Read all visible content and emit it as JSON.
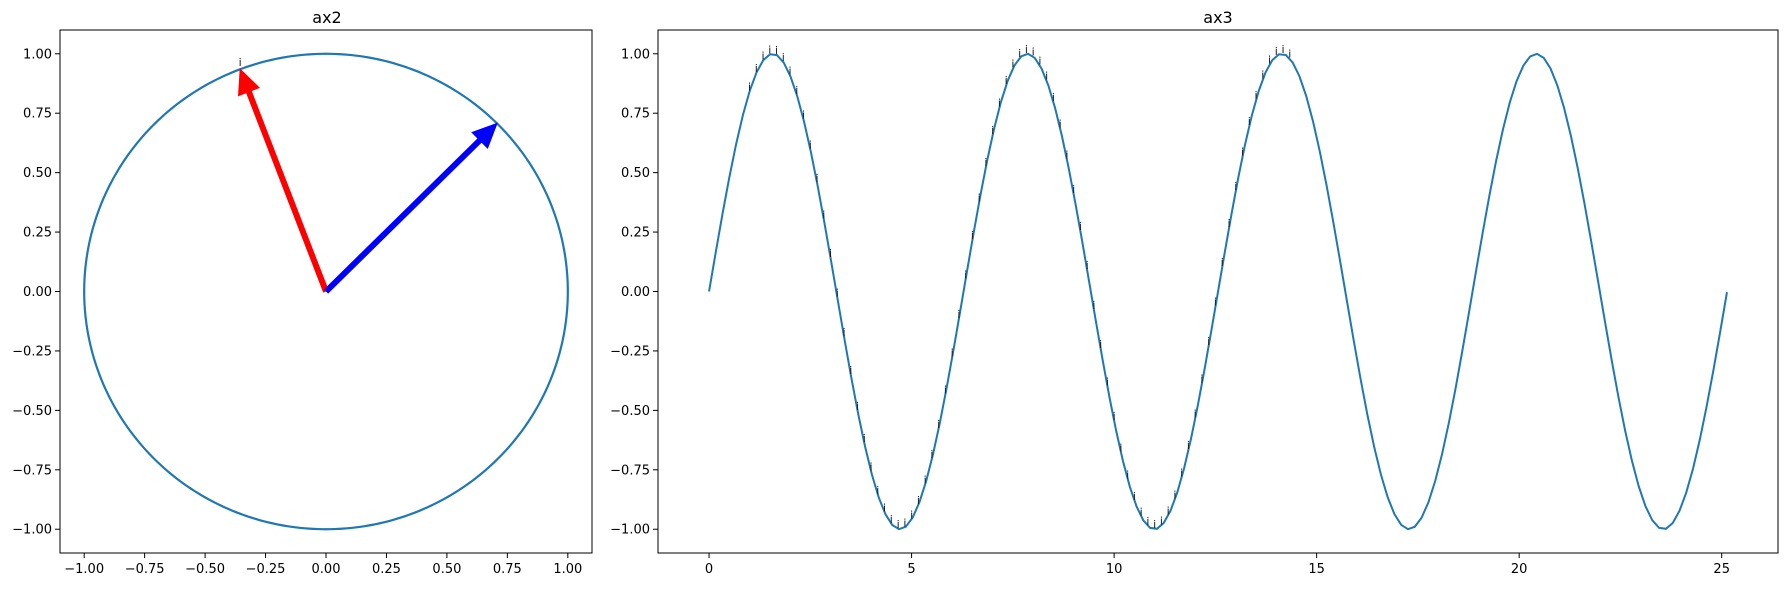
{
  "colors": {
    "line": "#1f77b4",
    "arrow_red": "#ff0000",
    "arrow_blue": "#0000ff",
    "spine": "#000000",
    "background": "#ffffff"
  },
  "chart_data": [
    {
      "type": "line",
      "title": "ax2",
      "xlabel": "",
      "ylabel": "",
      "xlim": [
        -1.1,
        1.1
      ],
      "ylim": [
        -1.1,
        1.1
      ],
      "grid": false,
      "xticks": [
        -1.0,
        -0.75,
        -0.5,
        -0.25,
        0.0,
        0.25,
        0.5,
        0.75,
        1.0
      ],
      "xtick_labels": [
        "−1.00",
        "−0.75",
        "−0.50",
        "−0.25",
        "0.00",
        "0.25",
        "0.50",
        "0.75",
        "1.00"
      ],
      "yticks": [
        -1.0,
        -0.75,
        -0.5,
        -0.25,
        0.0,
        0.25,
        0.5,
        0.75,
        1.0
      ],
      "ytick_labels": [
        "−1.00",
        "−0.75",
        "−0.50",
        "−0.25",
        "0.00",
        "0.25",
        "0.50",
        "0.75",
        "1.00"
      ],
      "circle": {
        "center": [
          0,
          0
        ],
        "radius": 1.0
      },
      "arrows": [
        {
          "from": [
            0,
            0
          ],
          "to": [
            -0.355,
            0.935
          ],
          "color": "red"
        },
        {
          "from": [
            0,
            0
          ],
          "to": [
            0.707,
            0.707
          ],
          "color": "blue"
        }
      ],
      "point_labels": [
        {
          "x": -0.355,
          "y": 0.935,
          "text": "i"
        }
      ]
    },
    {
      "type": "line",
      "title": "ax3",
      "xlabel": "",
      "ylabel": "",
      "xlim": [
        -1.26,
        26.39
      ],
      "ylim": [
        -1.1,
        1.1
      ],
      "grid": false,
      "xticks": [
        0,
        5,
        10,
        15,
        20,
        25
      ],
      "xtick_labels": [
        "0",
        "5",
        "10",
        "15",
        "20",
        "25"
      ],
      "yticks": [
        -1.0,
        -0.75,
        -0.5,
        -0.25,
        0.0,
        0.25,
        0.5,
        0.75,
        1.0
      ],
      "ytick_labels": [
        "−1.00",
        "−0.75",
        "−0.50",
        "−0.25",
        "0.00",
        "0.25",
        "0.50",
        "0.75",
        "1.00"
      ],
      "series": [
        {
          "function": "sin",
          "x_range": [
            0,
            25.13
          ],
          "points": 151
        }
      ],
      "point_labels": {
        "text": "i",
        "x_start": 1.0,
        "x_end": 14.5,
        "x_step": 0.1667,
        "follows": "sin"
      }
    }
  ]
}
